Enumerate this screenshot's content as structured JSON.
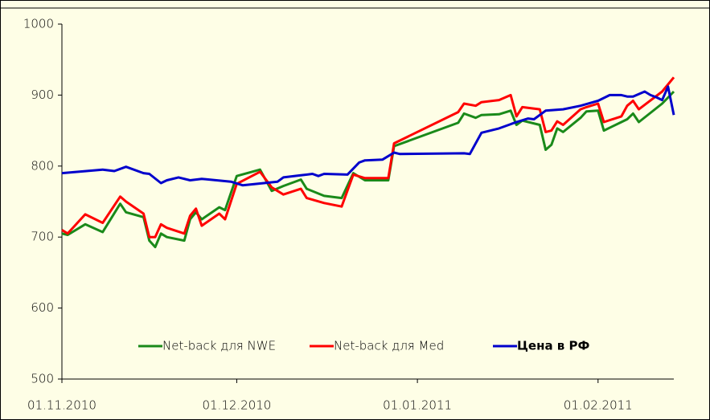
{
  "chart_data": {
    "type": "line",
    "xlim": [
      "01.11.2010",
      "14.02.2011"
    ],
    "xticks": [
      "01.11.2010",
      "01.12.2010",
      "01.01.2011",
      "01.02.2011"
    ],
    "ylim": [
      500,
      1000
    ],
    "yticks": [
      500,
      600,
      700,
      800,
      900,
      1000
    ],
    "series": [
      {
        "name": "Net-back для NWE",
        "color": "#1a8a1a",
        "x": [
          "01.11.2010",
          "02.11.2010",
          "05.11.2010",
          "08.11.2010",
          "11.11.2010",
          "12.11.2010",
          "15.11.2010",
          "16.11.2010",
          "17.11.2010",
          "18.11.2010",
          "19.11.2010",
          "22.11.2010",
          "23.11.2010",
          "24.11.2010",
          "25.11.2010",
          "28.11.2010",
          "29.11.2010",
          "01.12.2010",
          "05.12.2010",
          "07.12.2010",
          "09.12.2010",
          "12.12.2010",
          "13.12.2010",
          "16.12.2010",
          "19.12.2010",
          "21.12.2010",
          "23.12.2010",
          "27.12.2010",
          "28.12.2010",
          "08.01.2011",
          "09.01.2011",
          "11.01.2011",
          "12.01.2011",
          "15.01.2011",
          "17.01.2011",
          "18.01.2011",
          "19.01.2011",
          "22.01.2011",
          "23.01.2011",
          "24.01.2011",
          "25.01.2011",
          "26.01.2011",
          "29.01.2011",
          "30.01.2011",
          "01.02.2011",
          "02.02.2011",
          "05.02.2011",
          "06.02.2011",
          "07.02.2011",
          "08.02.2011",
          "12.02.2011",
          "14.02.2011"
        ],
        "values": [
          705,
          703,
          718,
          707,
          747,
          735,
          728,
          695,
          686,
          705,
          700,
          695,
          725,
          735,
          725,
          742,
          738,
          786,
          795,
          765,
          772,
          781,
          768,
          758,
          755,
          790,
          780,
          780,
          828,
          861,
          874,
          868,
          872,
          873,
          878,
          858,
          864,
          858,
          823,
          830,
          853,
          848,
          868,
          877,
          878,
          850,
          862,
          866,
          874,
          862,
          888,
          905
        ]
      },
      {
        "name": "Net-back для Med",
        "color": "#ff0000",
        "x": [
          "01.11.2010",
          "02.11.2010",
          "05.11.2010",
          "08.11.2010",
          "11.11.2010",
          "12.11.2010",
          "15.11.2010",
          "16.11.2010",
          "17.11.2010",
          "18.11.2010",
          "19.11.2010",
          "22.11.2010",
          "23.11.2010",
          "24.11.2010",
          "25.11.2010",
          "28.11.2010",
          "29.11.2010",
          "01.12.2010",
          "05.12.2010",
          "07.12.2010",
          "09.12.2010",
          "12.12.2010",
          "13.12.2010",
          "16.12.2010",
          "19.12.2010",
          "21.12.2010",
          "23.12.2010",
          "27.12.2010",
          "28.12.2010",
          "08.01.2011",
          "09.01.2011",
          "11.01.2011",
          "12.01.2011",
          "15.01.2011",
          "17.01.2011",
          "18.01.2011",
          "19.01.2011",
          "22.01.2011",
          "23.01.2011",
          "24.01.2011",
          "25.01.2011",
          "26.01.2011",
          "29.01.2011",
          "30.01.2011",
          "01.02.2011",
          "02.02.2011",
          "05.02.2011",
          "06.02.2011",
          "07.02.2011",
          "08.02.2011",
          "12.02.2011",
          "14.02.2011"
        ],
        "values": [
          710,
          705,
          732,
          720,
          757,
          750,
          733,
          700,
          700,
          718,
          713,
          705,
          730,
          740,
          716,
          733,
          725,
          775,
          792,
          770,
          760,
          768,
          755,
          748,
          743,
          788,
          783,
          783,
          832,
          876,
          888,
          885,
          890,
          893,
          900,
          870,
          883,
          880,
          848,
          850,
          863,
          858,
          880,
          883,
          888,
          862,
          870,
          885,
          892,
          880,
          905,
          925
        ]
      },
      {
        "name": "Цена в РФ",
        "color": "#0000cc",
        "x": [
          "01.11.2010",
          "08.11.2010",
          "10.11.2010",
          "12.11.2010",
          "15.11.2010",
          "16.11.2010",
          "18.11.2010",
          "19.11.2010",
          "21.11.2010",
          "23.11.2010",
          "25.11.2010",
          "30.11.2010",
          "02.12.2010",
          "08.12.2010",
          "09.12.2010",
          "12.12.2010",
          "14.12.2010",
          "15.12.2010",
          "16.12.2010",
          "20.12.2010",
          "22.12.2010",
          "23.12.2010",
          "26.12.2010",
          "28.12.2010",
          "29.12.2010",
          "09.01.2011",
          "10.01.2011",
          "12.01.2011",
          "15.01.2011",
          "18.01.2011",
          "20.01.2011",
          "21.01.2011",
          "23.01.2011",
          "26.01.2011",
          "29.01.2011",
          "01.02.2011",
          "03.02.2011",
          "05.02.2011",
          "06.02.2011",
          "07.02.2011",
          "09.02.2011",
          "10.02.2011",
          "11.02.2011",
          "12.02.2011",
          "13.02.2011",
          "14.02.2011"
        ],
        "values": [
          790,
          795,
          793,
          799,
          790,
          789,
          776,
          780,
          784,
          780,
          782,
          778,
          773,
          778,
          784,
          787,
          789,
          786,
          789,
          788,
          805,
          808,
          809,
          819,
          817,
          818,
          817,
          847,
          853,
          862,
          867,
          866,
          878,
          880,
          885,
          892,
          900,
          900,
          898,
          898,
          905,
          900,
          897,
          893,
          912,
          872
        ]
      }
    ]
  }
}
